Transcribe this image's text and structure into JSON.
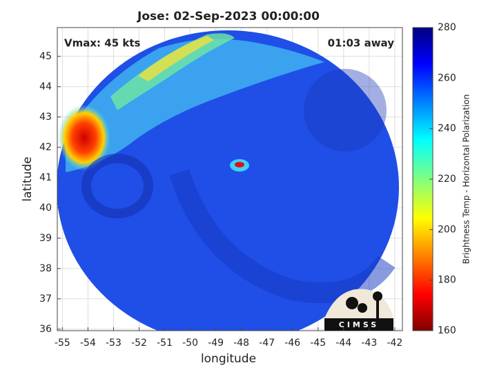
{
  "chart_data": {
    "type": "map",
    "title": "Jose: 02-Sep-2023 00:00:00",
    "xlabel": "longitude",
    "ylabel": "latitude",
    "xlim": [
      -55.2,
      -41.7
    ],
    "ylim": [
      35.95,
      45.95
    ],
    "xticks": [
      -55,
      -54,
      -53,
      -52,
      -51,
      -50,
      -49,
      -48,
      -47,
      -46,
      -45,
      -44,
      -43,
      -42
    ],
    "yticks": [
      36,
      37,
      38,
      39,
      40,
      41,
      42,
      43,
      44,
      45
    ],
    "grid": true,
    "annotations": [
      "Vmax: 45 kts",
      "01:03 away"
    ],
    "logo": "CIMSS",
    "colorbar": {
      "label": "Brightness Temp - Horizontal Polarization",
      "lim": [
        160,
        280
      ],
      "ticks": [
        160,
        180,
        200,
        220,
        240,
        260,
        280
      ]
    }
  }
}
